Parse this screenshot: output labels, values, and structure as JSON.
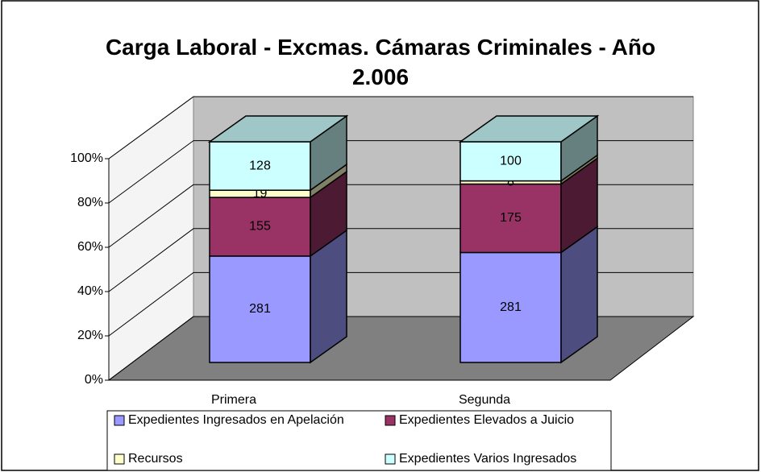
{
  "chart_data": {
    "type": "bar",
    "stacking": "percent",
    "title": "Carga Laboral - Excmas. Cámaras Criminales - Año 2.006",
    "categories": [
      "Primera",
      "Segunda"
    ],
    "series": [
      {
        "name": "Expedientes Ingresados en Apelación",
        "color": "#9999ff",
        "values": [
          281,
          281
        ]
      },
      {
        "name": "Expedientes Elevados a Juicio",
        "color": "#993366",
        "values": [
          155,
          175
        ]
      },
      {
        "name": "Recursos",
        "color": "#ffffcc",
        "values": [
          19,
          8
        ]
      },
      {
        "name": "Expedientes Varios Ingresados",
        "color": "#ccffff",
        "values": [
          128,
          100
        ]
      }
    ],
    "ylim": [
      0,
      100
    ],
    "yticks": [
      {
        "value": 0,
        "label": "0%"
      },
      {
        "value": 20,
        "label": "20%"
      },
      {
        "value": 40,
        "label": "40%"
      },
      {
        "value": 60,
        "label": "60%"
      },
      {
        "value": 80,
        "label": "80%"
      },
      {
        "value": 100,
        "label": "100%"
      }
    ],
    "grid": true,
    "legend": "bottom"
  }
}
